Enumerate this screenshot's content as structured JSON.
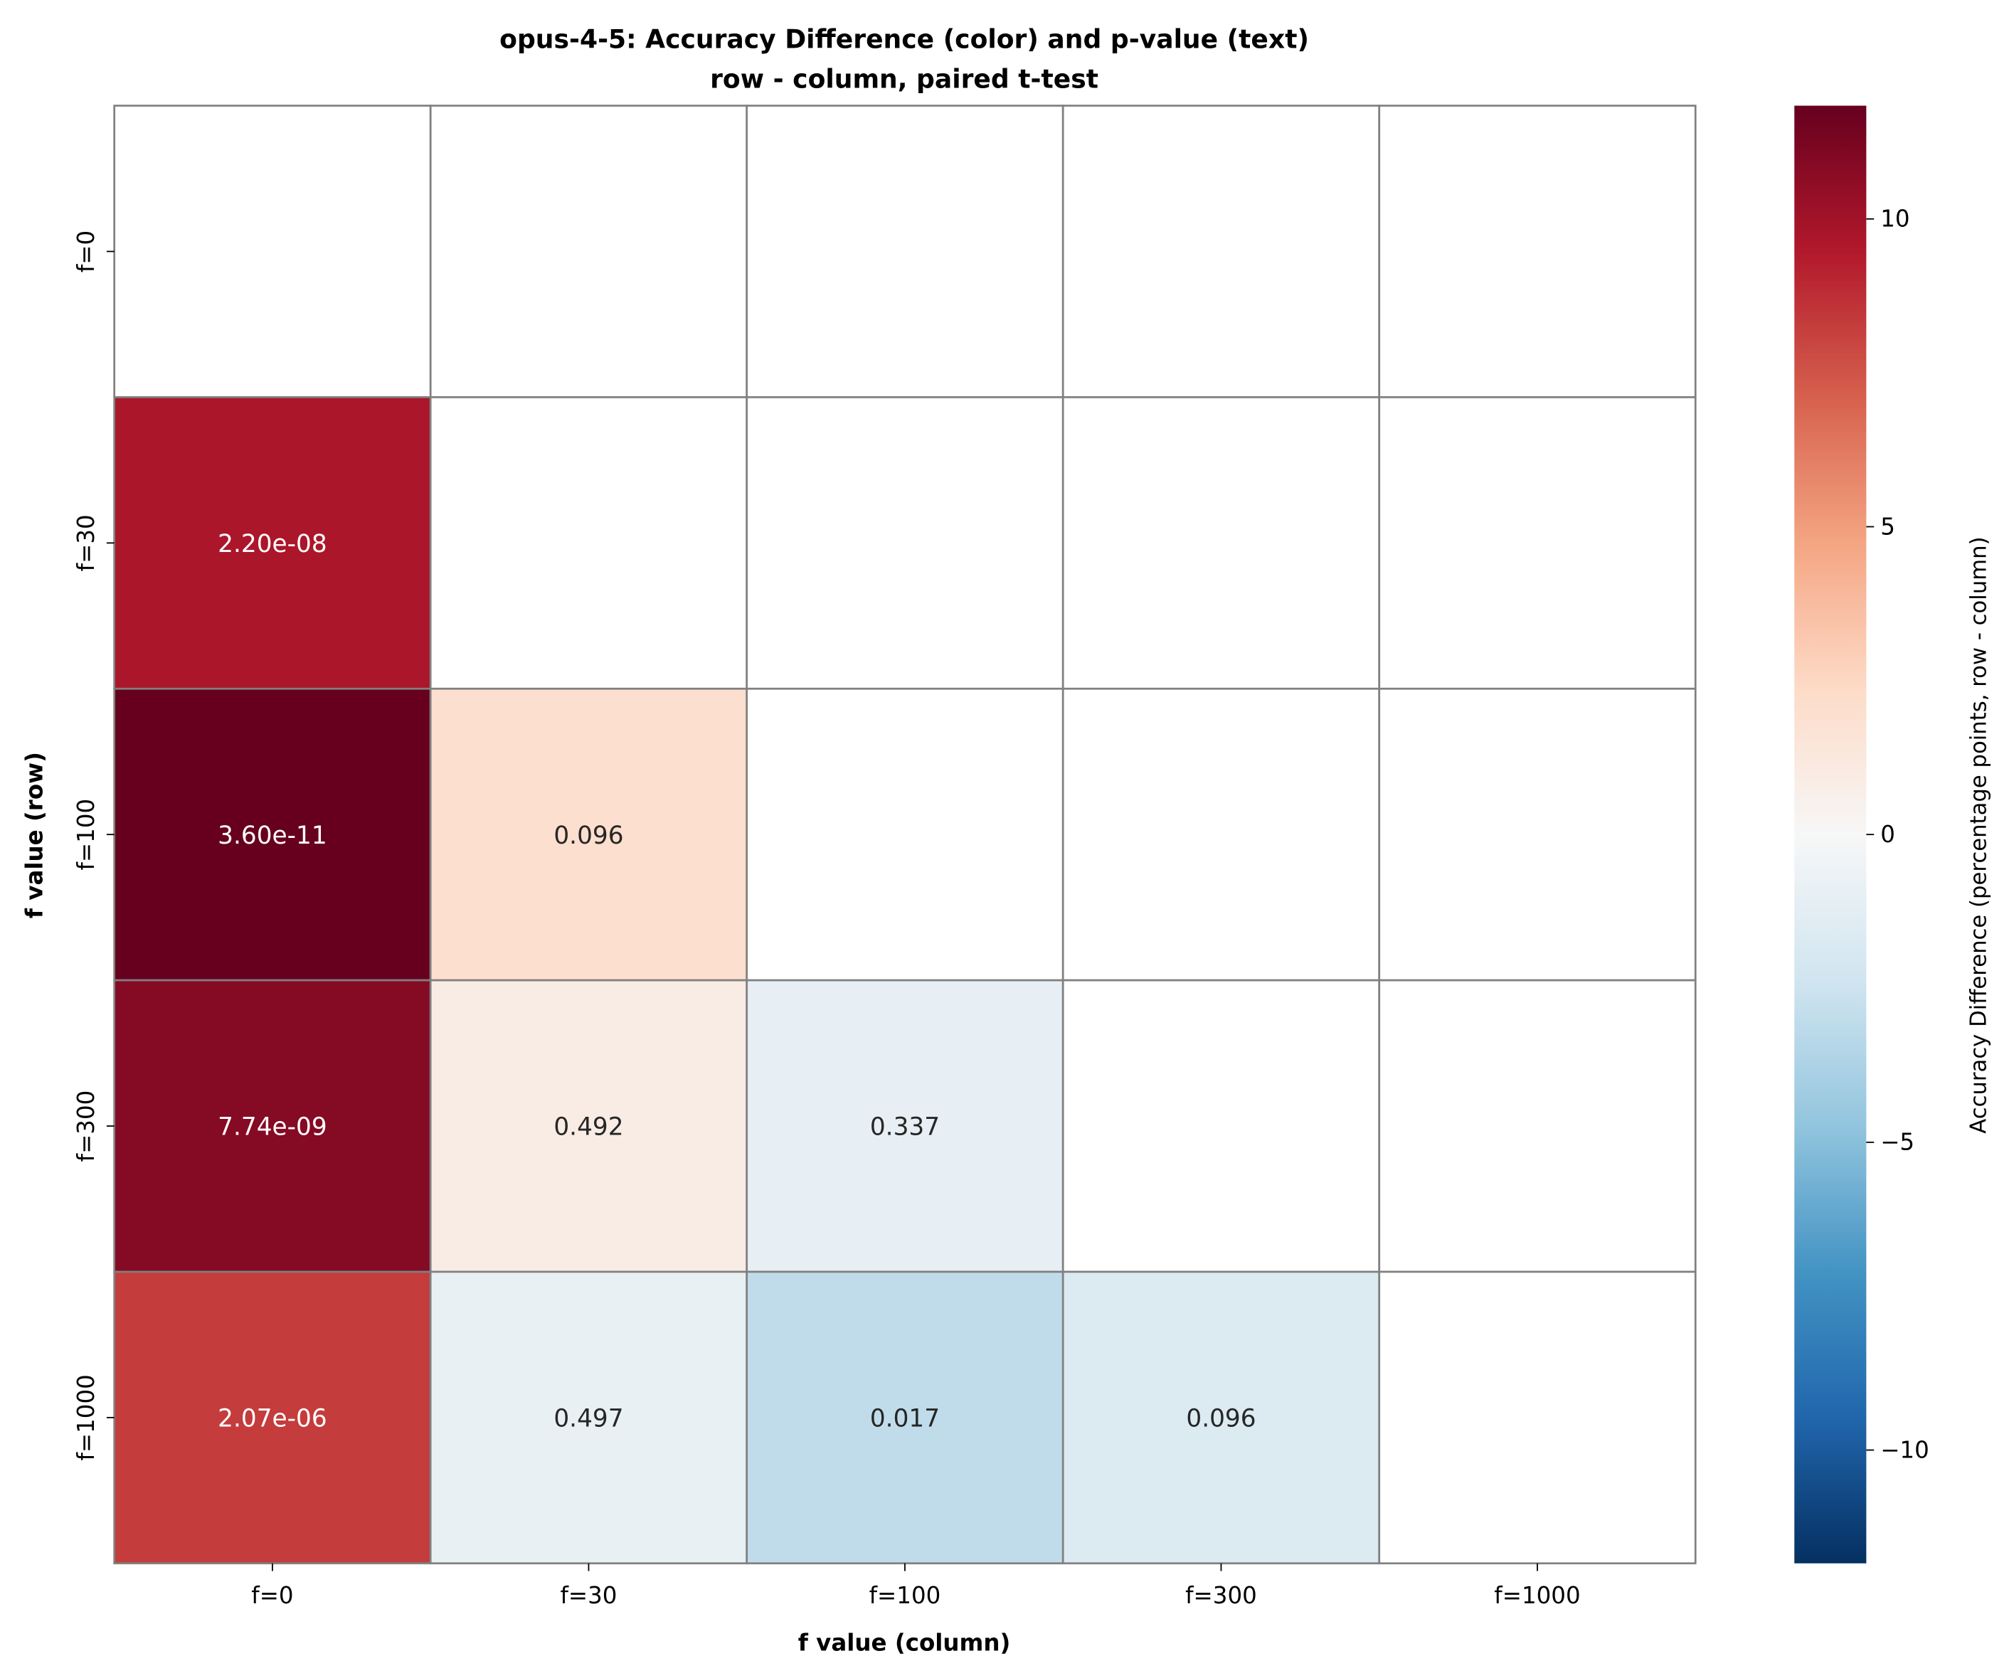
{
  "chart_data": {
    "type": "heatmap",
    "title": "opus-4-5: Accuracy Difference (color) and p-value (text)",
    "subtitle": "row - column, paired t-test",
    "xlabel": "f value (column)",
    "ylabel": "f value (row)",
    "row_labels": [
      "f=0",
      "f=30",
      "f=100",
      "f=300",
      "f=1000"
    ],
    "col_labels": [
      "f=0",
      "f=30",
      "f=100",
      "f=300",
      "f=1000"
    ],
    "values": [
      [
        null,
        null,
        null,
        null,
        null
      ],
      [
        9.7,
        null,
        null,
        null,
        null
      ],
      [
        11.84,
        2.0,
        null,
        null,
        null
      ],
      [
        10.9,
        0.9,
        -1.0,
        null,
        null
      ],
      [
        8.3,
        -0.9,
        -3.0,
        -1.7,
        null
      ]
    ],
    "annotations": [
      [
        "",
        "",
        "",
        "",
        ""
      ],
      [
        "2.20e-08",
        "",
        "",
        "",
        ""
      ],
      [
        "3.60e-11",
        "0.096",
        "",
        "",
        ""
      ],
      [
        "7.74e-09",
        "0.492",
        "0.337",
        "",
        ""
      ],
      [
        "2.07e-06",
        "0.497",
        "0.017",
        "0.096",
        ""
      ]
    ],
    "colormap": "RdBu_r",
    "vmin": -11.84,
    "vmax": 11.84,
    "colorbar": {
      "label": "Accuracy Difference (percentage points, row - column)",
      "ticks": [
        10,
        5,
        0,
        -5,
        -10
      ],
      "tick_labels": [
        "10",
        "5",
        "0",
        "−5",
        "−10"
      ]
    }
  }
}
